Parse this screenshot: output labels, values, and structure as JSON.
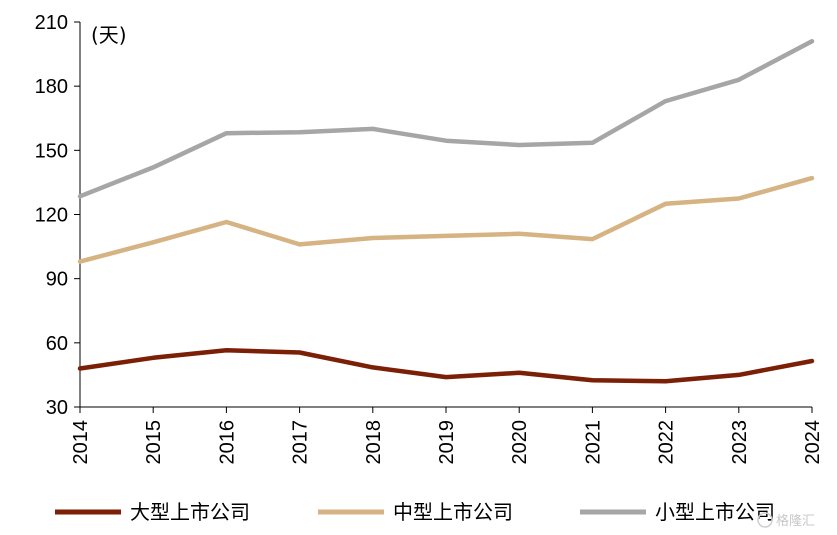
{
  "chart_data": {
    "type": "line",
    "unit_label": "(天)",
    "x": [
      "2014",
      "2015",
      "2016",
      "2017",
      "2018",
      "2019",
      "2020",
      "2021",
      "2022",
      "2023",
      "2024"
    ],
    "ylim": [
      30,
      210
    ],
    "yticks": [
      "30",
      "60",
      "90",
      "120",
      "150",
      "180",
      "210"
    ],
    "grid": false,
    "legend_position": "bottom",
    "series": [
      {
        "name": "大型上市公司",
        "color": "#7b1f06",
        "values": [
          48,
          53,
          56.5,
          55.5,
          48.5,
          44,
          46,
          42.5,
          42,
          45,
          51.5
        ]
      },
      {
        "name": "中型上市公司",
        "color": "#d6b382",
        "values": [
          98,
          107,
          116.5,
          106,
          109,
          110,
          111,
          108.5,
          125,
          127.5,
          137
        ]
      },
      {
        "name": "小型上市公司",
        "color": "#a6a6a6",
        "values": [
          128.5,
          142,
          158,
          158.5,
          160,
          154.5,
          152.5,
          153.5,
          173,
          183,
          201
        ]
      }
    ]
  },
  "watermark": "格隆汇"
}
